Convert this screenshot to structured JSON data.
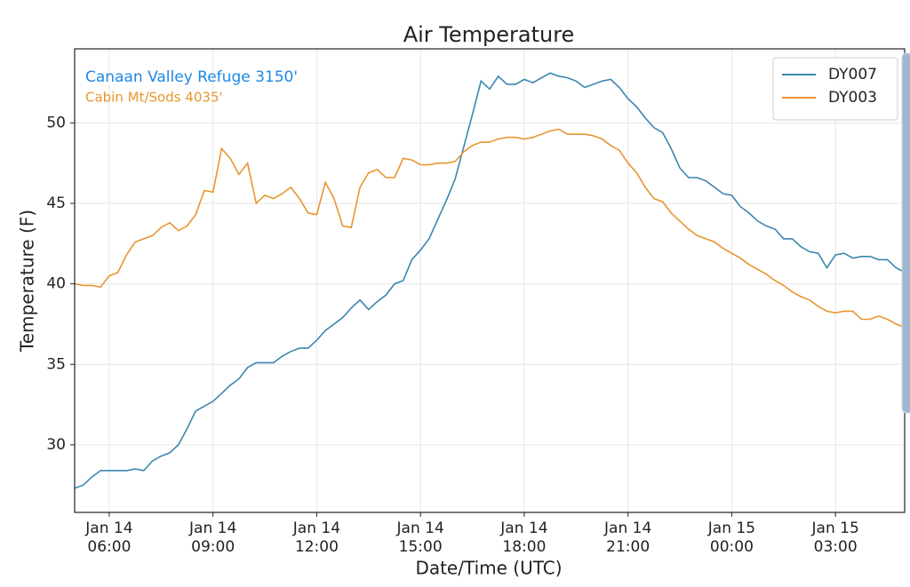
{
  "chart_data": {
    "type": "line",
    "title": "Air Temperature",
    "xlabel": "Date/Time (UTC)",
    "ylabel": "Temperature (F)",
    "annotations": [
      {
        "text": "Canaan Valley Refuge 3150'",
        "color": "#1e88e5"
      },
      {
        "text": "Cabin Mt/Sods 4035'",
        "color": "#e8952f"
      }
    ],
    "x": [
      "Jan 14 05:00",
      "Jan 14 05:15",
      "Jan 14 05:30",
      "Jan 14 05:45",
      "Jan 14 06:00",
      "Jan 14 06:15",
      "Jan 14 06:30",
      "Jan 14 06:45",
      "Jan 14 07:00",
      "Jan 14 07:15",
      "Jan 14 07:30",
      "Jan 14 07:45",
      "Jan 14 08:00",
      "Jan 14 08:15",
      "Jan 14 08:30",
      "Jan 14 08:45",
      "Jan 14 09:00",
      "Jan 14 09:15",
      "Jan 14 09:30",
      "Jan 14 09:45",
      "Jan 14 10:00",
      "Jan 14 10:15",
      "Jan 14 10:30",
      "Jan 14 10:45",
      "Jan 14 11:00",
      "Jan 14 11:15",
      "Jan 14 11:30",
      "Jan 14 11:45",
      "Jan 14 12:00",
      "Jan 14 12:15",
      "Jan 14 12:30",
      "Jan 14 12:45",
      "Jan 14 13:00",
      "Jan 14 13:15",
      "Jan 14 13:30",
      "Jan 14 13:45",
      "Jan 14 14:00",
      "Jan 14 14:15",
      "Jan 14 14:30",
      "Jan 14 14:45",
      "Jan 14 15:00",
      "Jan 14 15:15",
      "Jan 14 15:30",
      "Jan 14 15:45",
      "Jan 14 16:00",
      "Jan 14 16:15",
      "Jan 14 16:30",
      "Jan 14 16:45",
      "Jan 14 17:00",
      "Jan 14 17:15",
      "Jan 14 17:30",
      "Jan 14 17:45",
      "Jan 14 18:00",
      "Jan 14 18:15",
      "Jan 14 18:30",
      "Jan 14 18:45",
      "Jan 14 19:00",
      "Jan 14 19:15",
      "Jan 14 19:30",
      "Jan 14 19:45",
      "Jan 14 20:00",
      "Jan 14 20:15",
      "Jan 14 20:30",
      "Jan 14 20:45",
      "Jan 14 21:00",
      "Jan 14 21:15",
      "Jan 14 21:30",
      "Jan 14 21:45",
      "Jan 14 22:00",
      "Jan 14 22:15",
      "Jan 14 22:30",
      "Jan 14 22:45",
      "Jan 14 23:00",
      "Jan 14 23:15",
      "Jan 14 23:30",
      "Jan 14 23:45",
      "Jan 15 00:00",
      "Jan 15 00:15",
      "Jan 15 00:30",
      "Jan 15 00:45",
      "Jan 15 01:00",
      "Jan 15 01:15",
      "Jan 15 01:30",
      "Jan 15 01:45",
      "Jan 15 02:00",
      "Jan 15 02:15",
      "Jan 15 02:30",
      "Jan 15 02:45",
      "Jan 15 03:00",
      "Jan 15 03:15",
      "Jan 15 03:30",
      "Jan 15 03:45",
      "Jan 15 04:00",
      "Jan 15 04:15",
      "Jan 15 04:30",
      "Jan 15 04:45",
      "Jan 15 05:00"
    ],
    "series": [
      {
        "name": "DY007",
        "color": "#3a86b0",
        "values": [
          27.3,
          27.5,
          28.0,
          28.4,
          28.4,
          28.4,
          28.4,
          28.5,
          28.4,
          29.0,
          29.3,
          29.5,
          30.0,
          31.0,
          32.1,
          32.4,
          32.7,
          33.2,
          33.7,
          34.1,
          34.8,
          35.1,
          35.1,
          35.1,
          35.5,
          35.8,
          36.0,
          36.0,
          36.5,
          37.1,
          37.5,
          37.9,
          38.5,
          39.0,
          38.4,
          38.9,
          39.3,
          40.0,
          40.2,
          41.5,
          42.1,
          42.8,
          44.0,
          45.2,
          46.5,
          48.5,
          50.5,
          52.6,
          52.1,
          52.9,
          52.4,
          52.4,
          52.7,
          52.5,
          52.8,
          53.1,
          52.9,
          52.8,
          52.6,
          52.2,
          52.4,
          52.6,
          52.7,
          52.2,
          51.5,
          51.0,
          50.3,
          49.7,
          49.4,
          48.4,
          47.2,
          46.6,
          46.6,
          46.4,
          46.0,
          45.6,
          45.5,
          44.8,
          44.4,
          43.9,
          43.6,
          43.4,
          42.8,
          42.8,
          42.3,
          42.0,
          41.9,
          41.0,
          41.8,
          41.9,
          41.6,
          41.7,
          41.7,
          41.5,
          41.5,
          41.0,
          40.7
        ]
      },
      {
        "name": "DY003",
        "color": "#e8952f",
        "values": [
          40.0,
          39.9,
          39.9,
          39.8,
          40.5,
          40.7,
          41.8,
          42.6,
          42.8,
          43.0,
          43.5,
          43.8,
          43.3,
          43.6,
          44.3,
          45.8,
          45.7,
          48.4,
          47.8,
          46.8,
          47.5,
          45.0,
          45.5,
          45.3,
          45.6,
          46.0,
          45.3,
          44.4,
          44.3,
          46.3,
          45.3,
          43.6,
          43.5,
          46.0,
          46.9,
          47.1,
          46.6,
          46.6,
          47.8,
          47.7,
          47.4,
          47.4,
          47.5,
          47.5,
          47.6,
          48.2,
          48.6,
          48.8,
          48.8,
          49.0,
          49.1,
          49.1,
          49.0,
          49.1,
          49.3,
          49.5,
          49.6,
          49.3,
          49.3,
          49.3,
          49.2,
          49.0,
          48.6,
          48.3,
          47.5,
          46.9,
          46.0,
          45.3,
          45.1,
          44.4,
          43.9,
          43.4,
          43.0,
          42.8,
          42.6,
          42.2,
          41.9,
          41.6,
          41.2,
          40.9,
          40.6,
          40.2,
          39.9,
          39.5,
          39.2,
          39.0,
          38.6,
          38.3,
          38.2,
          38.3,
          38.3,
          37.8,
          37.8,
          38.0,
          37.8,
          37.5,
          37.3
        ]
      }
    ],
    "xlim": [
      "Jan 14 05:00",
      "Jan 15 05:00"
    ],
    "xticks": [
      "Jan 14 06:00",
      "Jan 14 09:00",
      "Jan 14 12:00",
      "Jan 14 15:00",
      "Jan 14 18:00",
      "Jan 14 21:00",
      "Jan 15 00:00",
      "Jan 15 03:00"
    ],
    "ylim": [
      25.8,
      54.6
    ],
    "yticks": [
      30,
      35,
      40,
      45,
      50
    ],
    "grid": true,
    "legend": "upper right"
  }
}
